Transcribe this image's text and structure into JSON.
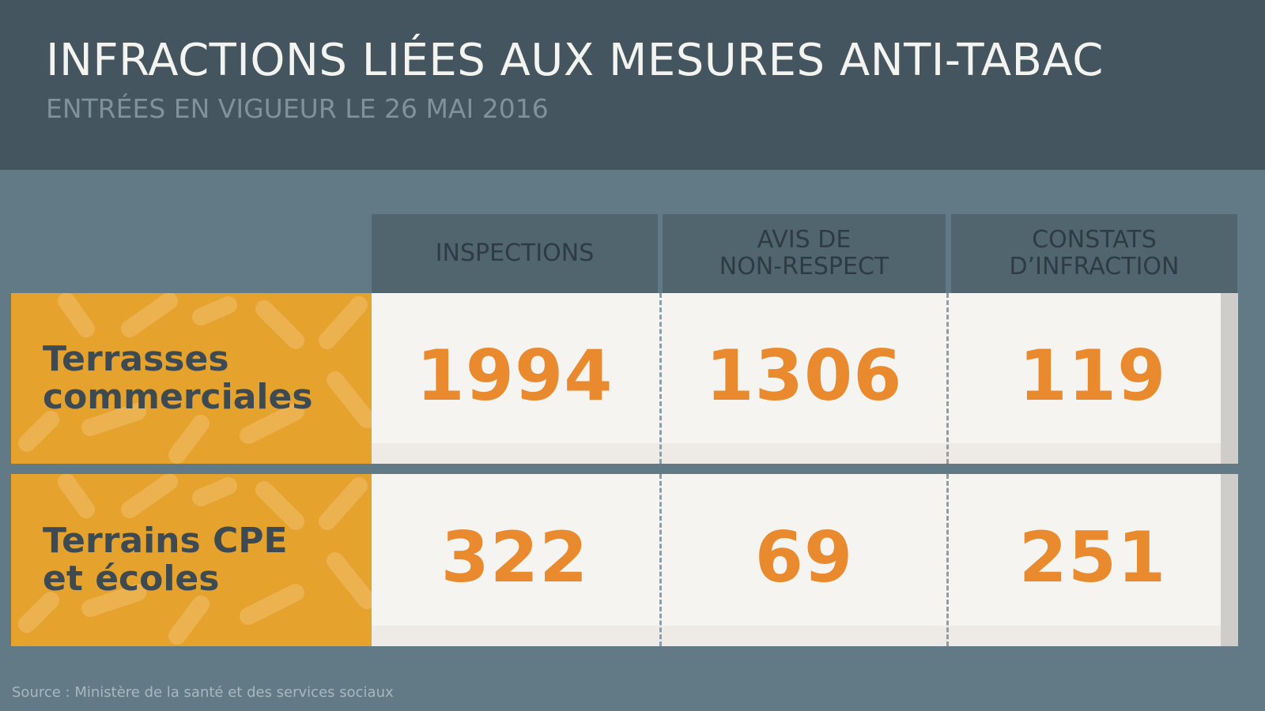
{
  "title": "INFRACTIONS LIÉES AUX MESURES ANTI-TABAC",
  "subtitle": "ENTRÉES EN VIGUEUR LE 26 MAI 2016",
  "source": "Source : Ministère de la santé et des services sociaux",
  "colors": {
    "header_bg": "#44555f",
    "page_bg": "#627a85",
    "label_bg": "#e5a22d",
    "value": "#ea8a2f"
  },
  "chart_data": {
    "type": "table",
    "columns": [
      "INSPECTIONS",
      "AVIS DE\nNON-RESPECT",
      "CONSTATS\nD’INFRACTION"
    ],
    "rows": [
      {
        "label": "Terrasses\ncommerciales",
        "values": [
          1994,
          1306,
          119
        ]
      },
      {
        "label": "Terrains CPE\net écoles",
        "values": [
          322,
          69,
          251
        ]
      }
    ]
  }
}
